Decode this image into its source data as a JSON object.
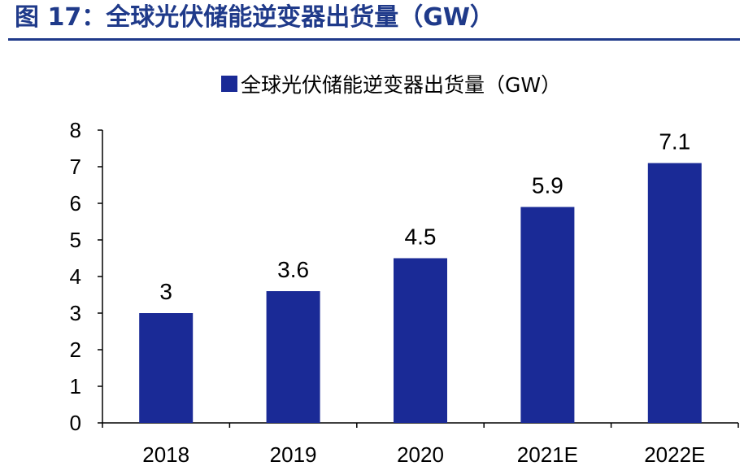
{
  "figure": {
    "title": "图 17：全球光伏储能逆变器出货量（GW）"
  },
  "chart_data": {
    "type": "bar",
    "categories": [
      "2018",
      "2019",
      "2020",
      "2021E",
      "2022E"
    ],
    "series": [
      {
        "name": "全球光伏储能逆变器出货量（GW）",
        "values": [
          3,
          3.6,
          4.5,
          5.9,
          7.1
        ],
        "labels": [
          "3",
          "3.6",
          "4.5",
          "5.9",
          "7.1"
        ],
        "color": "#1a2a96"
      }
    ],
    "yticks": [
      0,
      1,
      2,
      3,
      4,
      5,
      6,
      7,
      8
    ],
    "ylim": [
      0,
      8
    ],
    "grid": false,
    "legend": "top-center",
    "title": "",
    "xlabel": "",
    "ylabel": ""
  },
  "colors": {
    "title": "#1f3a8a",
    "bar": "#1a2a96",
    "axis": "#000000"
  }
}
